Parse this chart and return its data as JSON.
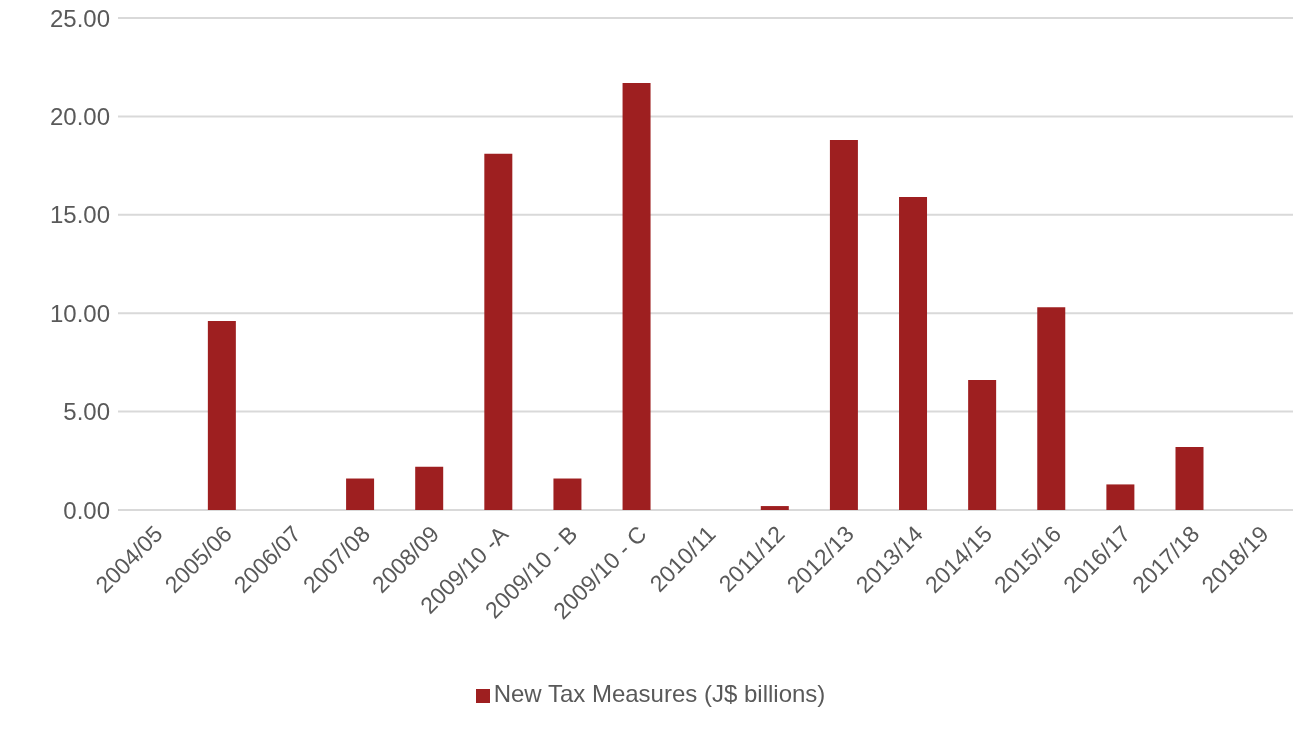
{
  "chart_data": {
    "type": "bar",
    "categories": [
      "2004/05",
      "2005/06",
      "2006/07",
      "2007/08",
      "2008/09",
      "2009/10 -A",
      "2009/10 - B",
      "2009/10 - C",
      "2010/11",
      "2011/12",
      "2012/13",
      "2013/14",
      "2014/15",
      "2015/16",
      "2016/17",
      "2017/18",
      "2018/19"
    ],
    "series": [
      {
        "name": "New Tax Measures (J$ billions)",
        "color": "#9e1f20",
        "values": [
          0,
          9.6,
          0,
          1.6,
          2.2,
          18.1,
          1.6,
          21.7,
          0,
          0.2,
          18.8,
          15.9,
          6.6,
          10.3,
          1.3,
          3.2,
          0
        ]
      }
    ],
    "ylim": [
      0,
      25
    ],
    "yticks": [
      {
        "value": 0,
        "label": "0.00"
      },
      {
        "value": 5,
        "label": "5.00"
      },
      {
        "value": 10,
        "label": "10.00"
      },
      {
        "value": 15,
        "label": "15.00"
      },
      {
        "value": 20,
        "label": "20.00"
      },
      {
        "value": 25,
        "label": "25.00"
      }
    ],
    "grid": "y",
    "legend": "bottom"
  }
}
